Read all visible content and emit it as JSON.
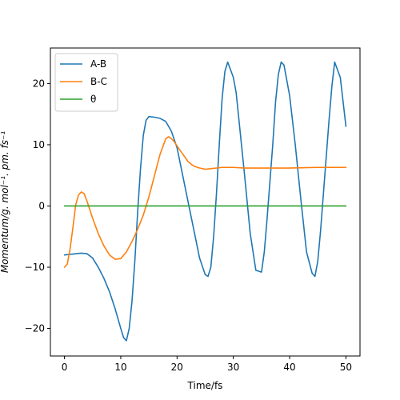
{
  "chart_data": {
    "type": "line",
    "title": "",
    "xlabel": "Time/fs",
    "ylabel": "Momentum/g. mol⁻¹. pm. fs⁻¹",
    "xlim": [
      -2.5,
      52.5
    ],
    "ylim": [
      -24.5,
      25.8
    ],
    "xticks": [
      0,
      10,
      20,
      30,
      40,
      50
    ],
    "yticks": [
      -20,
      -10,
      0,
      10,
      20
    ],
    "grid": false,
    "legend_position": "top-left",
    "series": [
      {
        "name": "A-B",
        "color": "#1f77b4",
        "x": [
          0,
          1,
          2,
          3,
          4,
          5,
          6,
          7,
          8,
          9,
          10,
          10.5,
          11,
          11.5,
          12,
          12.5,
          13,
          13.5,
          14,
          14.5,
          15,
          16,
          17,
          18,
          19,
          20,
          21,
          22,
          23,
          24,
          25,
          25.5,
          26,
          26.5,
          27,
          27.5,
          28,
          28.5,
          29,
          30,
          30.5,
          31,
          32,
          33,
          34,
          35,
          35.5,
          36,
          37,
          37.5,
          38,
          38.5,
          39,
          40,
          41,
          42,
          43,
          44,
          44.5,
          45,
          45.5,
          46,
          47,
          47.5,
          48,
          49,
          50
        ],
        "y": [
          -8.0,
          -7.9,
          -7.8,
          -7.7,
          -7.8,
          -8.5,
          -10.0,
          -11.8,
          -14.0,
          -16.8,
          -20.0,
          -21.5,
          -22.0,
          -20.0,
          -15.5,
          -9.0,
          -1.0,
          6.0,
          11.5,
          14.0,
          14.6,
          14.5,
          14.3,
          13.8,
          12.2,
          9.5,
          5.0,
          0.5,
          -4.0,
          -8.5,
          -11.2,
          -11.5,
          -10.0,
          -5.0,
          2.0,
          10.0,
          17.5,
          22.0,
          23.5,
          21.0,
          18.5,
          14.0,
          5.0,
          -4.5,
          -10.5,
          -10.8,
          -7.5,
          -2.0,
          10.0,
          17.0,
          21.5,
          23.5,
          23.0,
          18.0,
          10.0,
          1.0,
          -7.5,
          -11.0,
          -11.5,
          -9.0,
          -4.0,
          2.0,
          14.0,
          19.5,
          23.5,
          21.0,
          13.0
        ]
      },
      {
        "name": "B-C",
        "color": "#ff7f0e",
        "x": [
          0,
          0.5,
          1,
          1.5,
          2,
          2.5,
          3,
          3.5,
          4,
          5,
          6,
          7,
          8,
          9,
          10,
          11,
          12,
          13,
          14,
          15,
          16,
          17,
          18,
          18.5,
          19,
          19.5,
          20,
          21,
          22,
          23,
          24,
          25,
          26,
          28,
          30,
          32,
          35,
          40,
          45,
          50
        ],
        "y": [
          -10.0,
          -9.5,
          -7.0,
          -3.5,
          0.2,
          1.8,
          2.3,
          2.0,
          0.8,
          -2.0,
          -4.5,
          -6.5,
          -8.0,
          -8.7,
          -8.6,
          -7.5,
          -5.8,
          -3.8,
          -1.5,
          1.5,
          5.0,
          8.5,
          11.0,
          11.3,
          11.0,
          10.5,
          9.8,
          8.5,
          7.2,
          6.5,
          6.2,
          6.0,
          6.1,
          6.3,
          6.3,
          6.2,
          6.2,
          6.2,
          6.3,
          6.3
        ]
      },
      {
        "name": "θ",
        "color": "#2ca02c",
        "x": [
          0,
          50
        ],
        "y": [
          0,
          0
        ]
      }
    ]
  }
}
